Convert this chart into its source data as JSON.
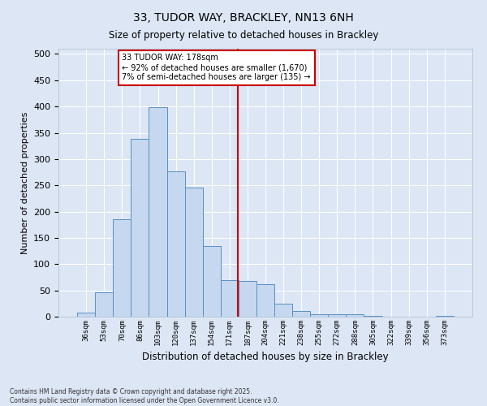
{
  "title": "33, TUDOR WAY, BRACKLEY, NN13 6NH",
  "subtitle": "Size of property relative to detached houses in Brackley",
  "xlabel": "Distribution of detached houses by size in Brackley",
  "ylabel": "Number of detached properties",
  "footnote": "Contains HM Land Registry data © Crown copyright and database right 2025.\nContains public sector information licensed under the Open Government Licence v3.0.",
  "bar_labels": [
    "36sqm",
    "53sqm",
    "70sqm",
    "86sqm",
    "103sqm",
    "120sqm",
    "137sqm",
    "154sqm",
    "171sqm",
    "187sqm",
    "204sqm",
    "221sqm",
    "238sqm",
    "255sqm",
    "272sqm",
    "288sqm",
    "305sqm",
    "322sqm",
    "339sqm",
    "356sqm",
    "373sqm"
  ],
  "bar_values": [
    8,
    46,
    185,
    338,
    398,
    277,
    245,
    135,
    70,
    68,
    62,
    25,
    11,
    5,
    4,
    4,
    1,
    0,
    0,
    0,
    2
  ],
  "bar_color": "#c5d8f0",
  "bar_edge_color": "#5a8fc0",
  "annotation_text": "33 TUDOR WAY: 178sqm\n← 92% of detached houses are smaller (1,670)\n7% of semi-detached houses are larger (135) →",
  "vline_color": "#cc0000",
  "annotation_box_color": "#cc0000",
  "bg_color": "#dce6f5",
  "grid_color": "#ffffff",
  "ylim": [
    0,
    510
  ],
  "yticks": [
    0,
    50,
    100,
    150,
    200,
    250,
    300,
    350,
    400,
    450,
    500
  ]
}
